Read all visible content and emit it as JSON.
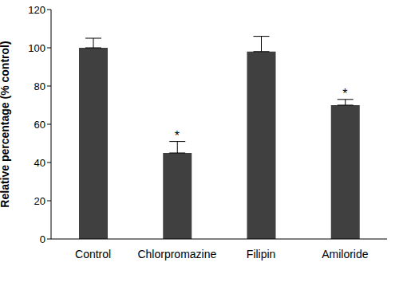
{
  "chart_data": {
    "type": "bar",
    "y_label": "Relative percentage (% control)",
    "categories": [
      "Control",
      "Chlorpromazine",
      "Filipin",
      "Amiloride"
    ],
    "values": [
      100,
      45,
      98,
      70
    ],
    "errors": [
      5,
      6,
      8,
      3
    ],
    "color": "#404040",
    "ylim": [
      0,
      120
    ],
    "yticks": [
      0,
      20,
      40,
      60,
      80,
      100,
      120
    ],
    "grid": false,
    "annotations": [
      {
        "category": "Chlorpromazine",
        "text": "*"
      },
      {
        "category": "Amiloride",
        "text": "*"
      }
    ]
  }
}
